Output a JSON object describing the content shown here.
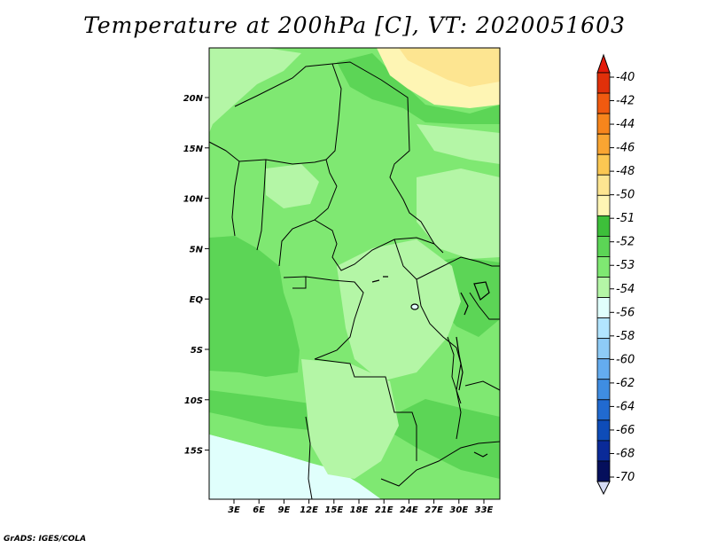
{
  "title": "Temperature at 200hPa [C], VT: 2020051603",
  "credit": "GrADS: IGES/COLA",
  "map": {
    "lat_labels": [
      "20N",
      "15N",
      "10N",
      "5N",
      "EQ",
      "5S",
      "10S",
      "15S"
    ],
    "lon_labels": [
      "3E",
      "6E",
      "9E",
      "12E",
      "15E",
      "18E",
      "21E",
      "24E",
      "27E",
      "30E",
      "33E"
    ],
    "colors": {
      "ocean": "#e0fffc",
      "level_53": "#7fe872",
      "level_52": "#5cd556",
      "level_54": "#b4f6a6",
      "warm_50": "#fde591",
      "warm_51": "#fef5b4",
      "border": "#000000"
    }
  },
  "colorbar": {
    "labels": [
      "-40",
      "-42",
      "-44",
      "-46",
      "-48",
      "-50",
      "-51",
      "-52",
      "-53",
      "-54",
      "-56",
      "-58",
      "-60",
      "-62",
      "-64",
      "-66",
      "-68",
      "-70"
    ],
    "colors": [
      "#e0300a",
      "#f05a10",
      "#f7851c",
      "#f9a532",
      "#fbc752",
      "#fde591",
      "#fef5b4",
      "#3dbf3a",
      "#5cd556",
      "#7fe872",
      "#b4f6a6",
      "#e0fffc",
      "#b2e5ff",
      "#8ecbf6",
      "#64acef",
      "#3f8de2",
      "#216ad0",
      "#0e4cb8",
      "#0a2a98",
      "#050f5c"
    ],
    "top_arrow_color": "#e31a0a",
    "bottom_arrow_color": "#d6dcf6"
  }
}
